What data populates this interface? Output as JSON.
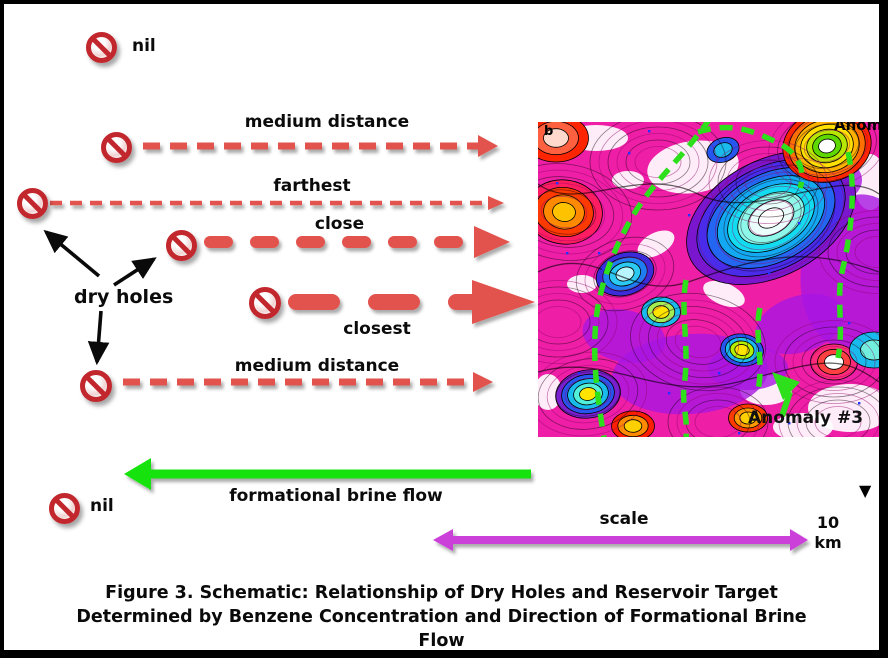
{
  "figure": {
    "background": "#ffffff",
    "border_color": "#000000"
  },
  "icons": {
    "dry_hole": "no-entry-icon",
    "marker": "down-triangle-icon",
    "triangle_glyph": "▼"
  },
  "labels": {
    "nil_top": "nil",
    "medium_top": "medium distance",
    "farthest": "farthest",
    "close": "close",
    "closest": "closest",
    "dry_holes": "dry holes",
    "medium_bottom": "medium distance",
    "nil_bottom": "nil",
    "brine_flow": "formational brine flow",
    "scale": "scale",
    "scale_value": "10",
    "scale_unit": "km"
  },
  "map": {
    "anomaly_label": "Anomaly #3",
    "corner_letter": "b",
    "top_edge_label": "Anom"
  },
  "caption": {
    "line1": "Figure 3. Schematic: Relationship of Dry Holes and Reservoir Target",
    "line2": "Determined by Benzene Concentration and Direction of Formational Brine",
    "line3": "Flow"
  },
  "colors": {
    "arrow_red": "#e2534d",
    "brine_green": "#16e30a",
    "scale_magenta": "#cb3fd9",
    "icon_red": "#c1272d",
    "black_arrow": "#0a0a0a",
    "map_magenta": "#ee1ea6",
    "map_purple": "#a816e2",
    "map_cyan": "#19dff0",
    "map_green_line": "#2ee01c"
  }
}
